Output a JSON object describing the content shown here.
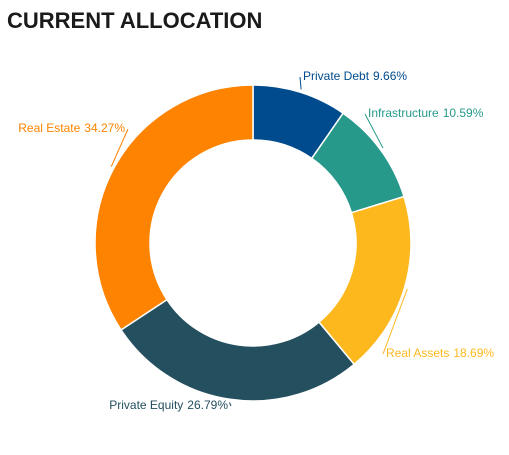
{
  "chart_data": {
    "type": "donut",
    "title": "CURRENT ALLOCATION",
    "categories": [
      "Private Debt",
      "Infrastructure",
      "Real Assets",
      "Private Equity",
      "Real Estate"
    ],
    "values": [
      9.66,
      10.59,
      18.69,
      26.79,
      34.27
    ],
    "value_labels": [
      "9.66%",
      "10.59%",
      "18.69%",
      "26.79%",
      "34.27%"
    ],
    "colors": [
      "#004b8d",
      "#26998a",
      "#fdb81e",
      "#244f5e",
      "#fd8300"
    ]
  }
}
